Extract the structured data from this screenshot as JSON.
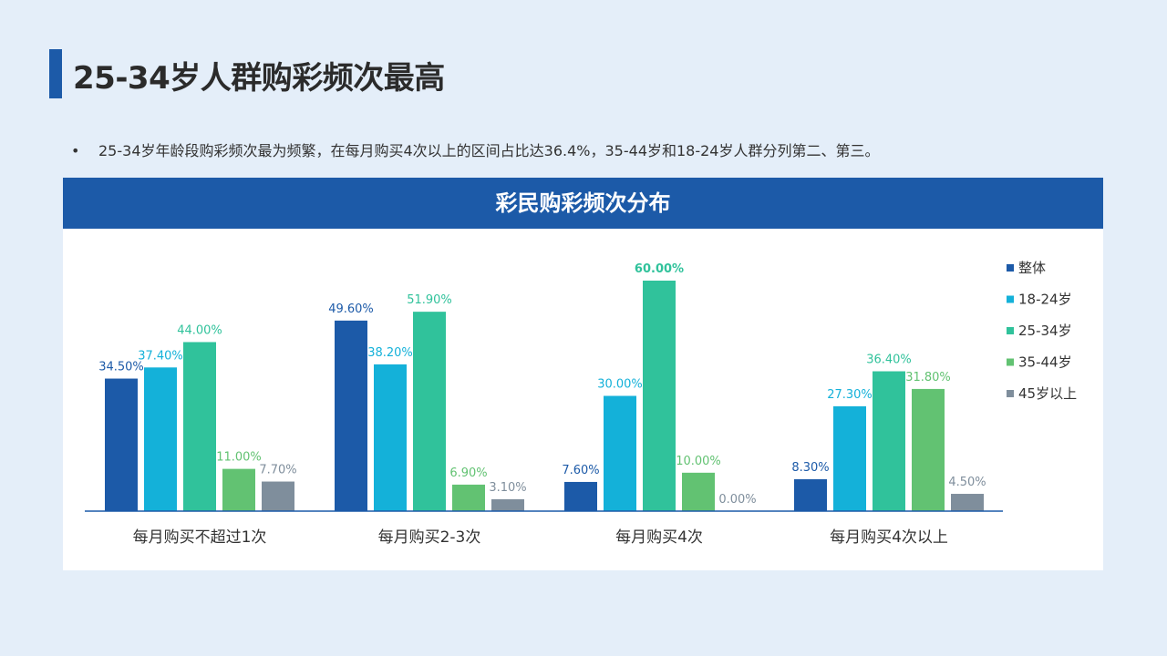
{
  "page": {
    "title": "25-34岁人群购彩频次最高",
    "bullet_marker": "•",
    "bullet_text": "25-34岁年龄段购彩频次最为频繁，在每月购买4次以上的区间占比达36.4%，35-44岁和18-24岁人群分列第二、第三。"
  },
  "chart_data": {
    "type": "bar",
    "title": "彩民购彩频次分布",
    "categories": [
      "每月购买不超过1次",
      "每月购买2-3次",
      "每月购买4次",
      "每月购买4次以上"
    ],
    "series": [
      {
        "name": "整体",
        "color": "#1c5aa8",
        "values": [
          34.5,
          49.6,
          7.6,
          8.3
        ]
      },
      {
        "name": "18-24岁",
        "color": "#14b1d9",
        "values": [
          37.4,
          38.2,
          30.0,
          27.3
        ]
      },
      {
        "name": "25-34岁",
        "color": "#30c29b",
        "values": [
          44.0,
          51.9,
          60.0,
          36.4
        ]
      },
      {
        "name": "35-44岁",
        "color": "#62c272",
        "values": [
          11.0,
          6.9,
          10.0,
          31.8
        ]
      },
      {
        "name": "45岁以上",
        "color": "#7f8e9c",
        "values": [
          7.7,
          3.1,
          0.0,
          4.5
        ]
      }
    ],
    "value_format": "percent_2dp",
    "highlighted_label": {
      "category": "每月购买4次",
      "series": "25-34岁"
    },
    "ylim": [
      0,
      60
    ],
    "grid": false,
    "legend_position": "right"
  }
}
